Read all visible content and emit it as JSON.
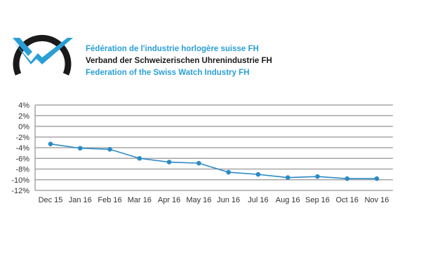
{
  "header": {
    "logo_icon": "fh-watch-logo-icon",
    "brand_color": "#2a9fd6",
    "lines": {
      "fr": "Fédération de l'industrie horlogère suisse FH",
      "de": "Verband der Schweizerischen Uhrenindustrie FH",
      "en": "Federation of the Swiss Watch Industry FH"
    }
  },
  "chart_data": {
    "type": "line",
    "title": "",
    "xlabel": "",
    "ylabel": "",
    "categories": [
      "Dec 15",
      "Jan 16",
      "Feb 16",
      "Mar 16",
      "Apr 16",
      "May 16",
      "Jun 16",
      "Jul 16",
      "Aug 16",
      "Sep 16",
      "Oct 16",
      "Nov 16"
    ],
    "series": [
      {
        "values": [
          -3.3,
          -4.1,
          -4.3,
          -6.0,
          -6.7,
          -6.9,
          -8.6,
          -9.0,
          -9.6,
          -9.4,
          -9.8,
          -9.8
        ]
      }
    ],
    "ylim": [
      -12,
      4
    ],
    "yticks": [
      4,
      2,
      0,
      -2,
      -4,
      -6,
      -8,
      -10,
      -12
    ],
    "ytick_labels": [
      "4%",
      "2%",
      "0%",
      "-2%",
      "-4%",
      "-6%",
      "-8%",
      "-10%",
      "-12%"
    ],
    "grid": true,
    "legend": "none",
    "line_color": "#2a8bc6",
    "grid_color": "#a6a6a6"
  }
}
